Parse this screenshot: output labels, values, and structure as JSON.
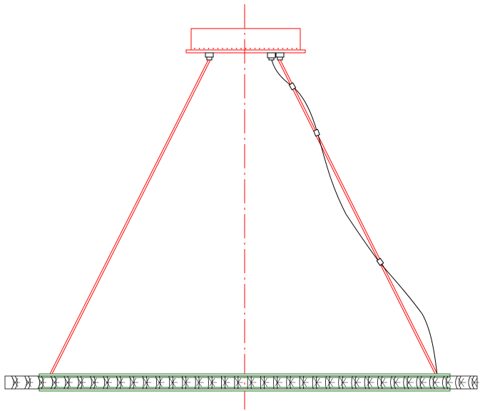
{
  "drawing": {
    "colors": {
      "background": "#ffffff",
      "structure": "#ff0000",
      "cable": "#000000",
      "ring_edge": "#1f7a1f",
      "ring_fill": "#e8f5e8"
    },
    "ring_segment_count": 36,
    "cable_clip_count": 3
  }
}
